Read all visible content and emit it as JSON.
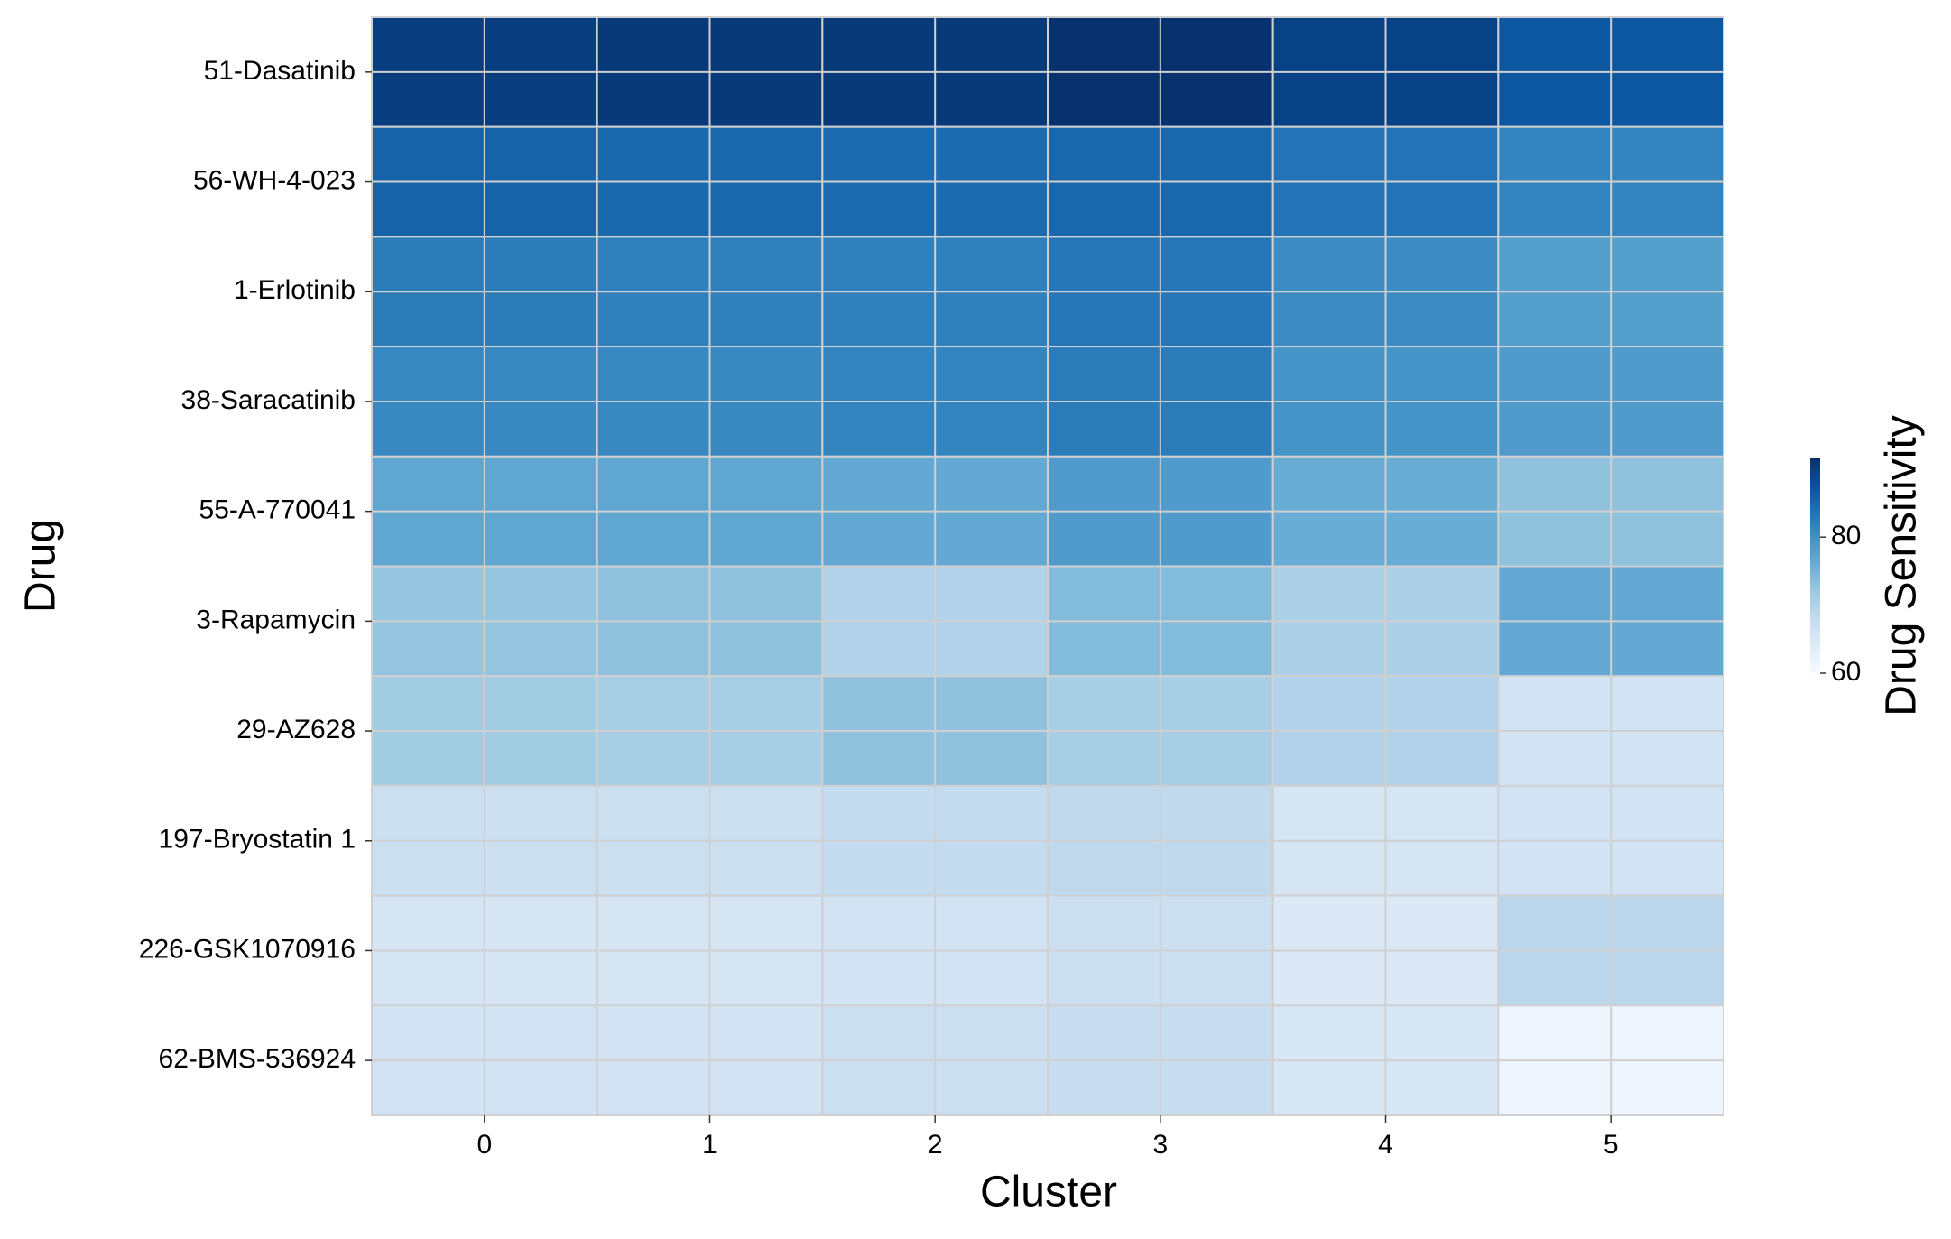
{
  "chart_data": {
    "type": "heatmap",
    "xlabel": "Cluster",
    "ylabel": "Drug",
    "colorbar_label": "Drug Sensitivity",
    "x_categories": [
      0,
      1,
      2,
      3,
      4,
      5
    ],
    "y_categories": [
      "51-Dasatinib",
      "56-WH-4-023",
      "1-Erlotinib",
      "38-Saracatinib",
      "55-A-770041",
      "3-Rapamycin",
      "29-AZ628",
      "197-Bryostatin 1",
      "226-GSK1070916",
      "62-BMS-536924"
    ],
    "values": [
      [
        90,
        90.5,
        90.5,
        91.5,
        89.5,
        87
      ],
      [
        85.5,
        85,
        84.5,
        85,
        83.5,
        81.5
      ],
      [
        82.5,
        82,
        82,
        83,
        80.5,
        78
      ],
      [
        81,
        81,
        81.5,
        82.5,
        79.5,
        78.5
      ],
      [
        77,
        77,
        76.5,
        78.5,
        76,
        73
      ],
      [
        72.5,
        73,
        70,
        74,
        70.5,
        76.5
      ],
      [
        71.5,
        71,
        73,
        71,
        70,
        66
      ],
      [
        67,
        67,
        68,
        68.5,
        65.5,
        66
      ],
      [
        65.5,
        65.5,
        66,
        67,
        64.5,
        69
      ],
      [
        66,
        66,
        67,
        67.5,
        65,
        61.5
      ]
    ],
    "colormap": "Blues",
    "clim": [
      60,
      91.7
    ],
    "cticks": [
      60,
      80
    ]
  }
}
